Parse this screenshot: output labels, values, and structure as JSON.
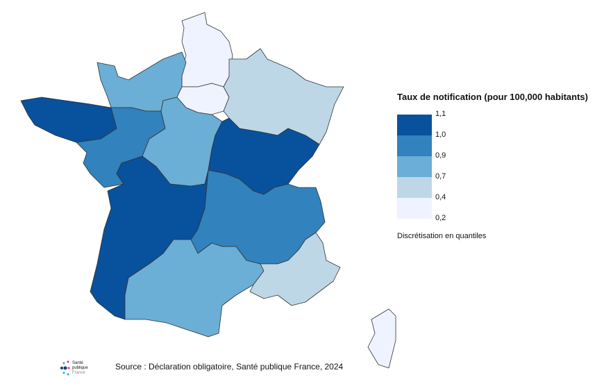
{
  "legend": {
    "title": "Taux de notification (pour 100,000 habitants)",
    "breaks": [
      "1,1",
      "1,0",
      "0,9",
      "0,7",
      "0,4",
      "0,2"
    ],
    "colors": [
      "#08519c",
      "#3182bd",
      "#6baed6",
      "#bdd7e7",
      "#eff3ff"
    ],
    "note": "Discrétisation en quantiles"
  },
  "regions": [
    {
      "name": "Hauts-de-France",
      "class": 4
    },
    {
      "name": "Île-de-France",
      "class": 4
    },
    {
      "name": "Normandie",
      "class": 2
    },
    {
      "name": "Grand Est",
      "class": 3
    },
    {
      "name": "Bretagne",
      "class": 0
    },
    {
      "name": "Pays de la Loire",
      "class": 1
    },
    {
      "name": "Centre-Val de Loire",
      "class": 2
    },
    {
      "name": "Bourgogne-Franche-Comté",
      "class": 0
    },
    {
      "name": "Nouvelle-Aquitaine",
      "class": 0
    },
    {
      "name": "Auvergne-Rhône-Alpes",
      "class": 1
    },
    {
      "name": "Occitanie",
      "class": 2
    },
    {
      "name": "Provence-Alpes-Côte d'Azur",
      "class": 3
    },
    {
      "name": "Corse",
      "class": 4
    }
  ],
  "source": "Source : Déclaration obligatoire, Santé publique France, 2024",
  "logo": {
    "line1": "Santé",
    "line2": "publique",
    "line3": "France"
  }
}
